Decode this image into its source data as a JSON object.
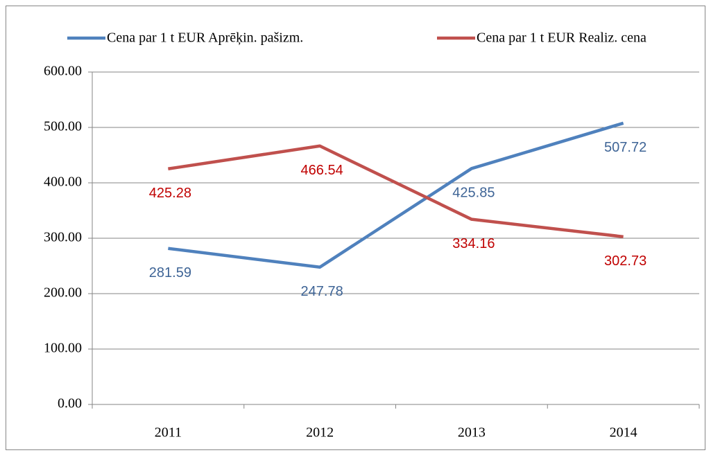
{
  "chart_data": {
    "type": "line",
    "categories": [
      "2011",
      "2012",
      "2013",
      "2014"
    ],
    "series": [
      {
        "name": "Cena par 1 t EUR Aprēķin. pašizm.",
        "color": "#4f81bd",
        "label_color": "#3e6496",
        "values": [
          281.59,
          247.78,
          425.85,
          507.72
        ]
      },
      {
        "name": "Cena par 1 t EUR Realiz. cena",
        "color": "#c0504d",
        "label_color": "#c00000",
        "values": [
          425.28,
          466.54,
          334.16,
          302.73
        ]
      }
    ],
    "ylim": [
      0,
      600
    ],
    "yticks": [
      {
        "value": 0,
        "label": "0.00"
      },
      {
        "value": 100,
        "label": "100.00"
      },
      {
        "value": 200,
        "label": "200.00"
      },
      {
        "value": 300,
        "label": "300.00"
      },
      {
        "value": 400,
        "label": "400.00"
      },
      {
        "value": 500,
        "label": "500.00"
      },
      {
        "value": 600,
        "label": "600.00"
      }
    ],
    "grid": true,
    "legend": "top"
  }
}
